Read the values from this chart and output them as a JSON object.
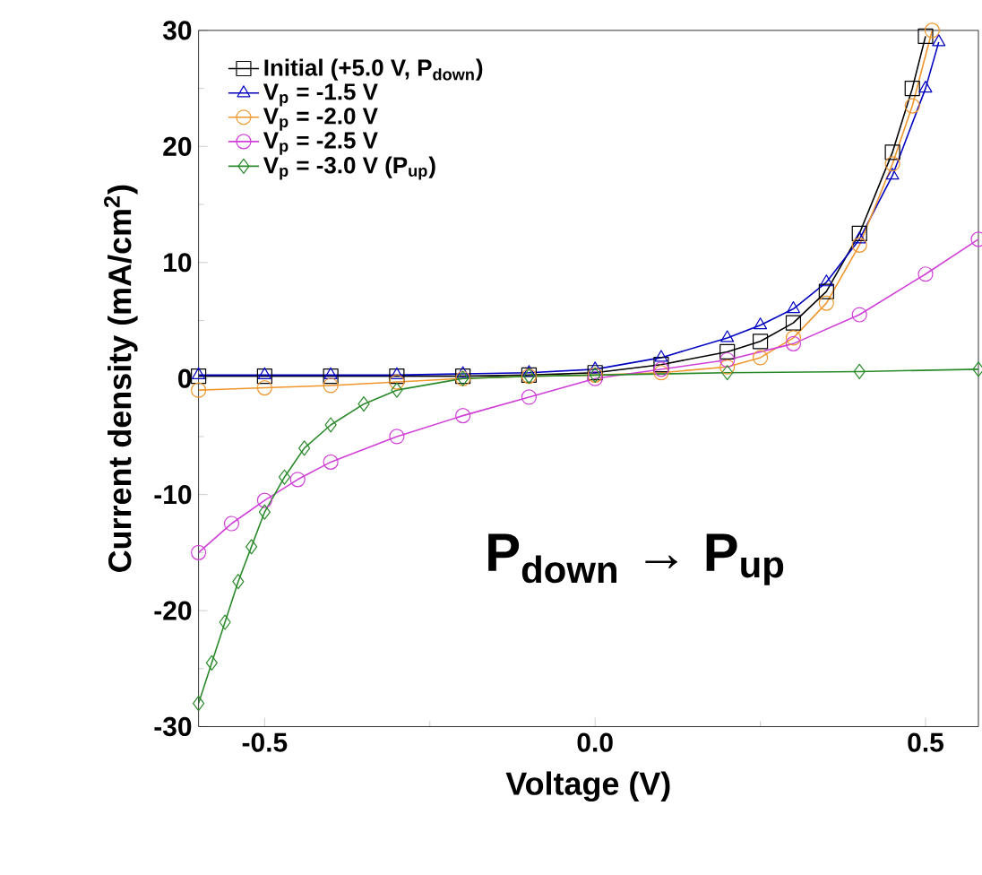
{
  "chart_data": {
    "type": "line",
    "xlabel": "Voltage (V)",
    "ylabel": "Current density (mA/cm$^{2}$)",
    "xlim": [
      -0.6,
      0.58
    ],
    "ylim": [
      -30,
      30
    ],
    "xticks": [
      -0.5,
      {
        "value": 0.0,
        "label": "0.0"
      },
      0.5
    ],
    "yticks": [
      -30,
      -20,
      -10,
      0,
      10,
      20,
      30
    ],
    "legend": "top left",
    "grid": false,
    "line_style": "solid",
    "annotations": [
      "P$_{down}$ → P$_{up}$"
    ],
    "series": [
      {
        "name": "Initial (+5.0 V, P$_{down}$)",
        "color": "#000000",
        "marker": "square",
        "x": [
          -0.6,
          -0.5,
          -0.4,
          -0.3,
          -0.2,
          -0.1,
          0.0,
          0.1,
          0.2,
          0.25,
          0.3,
          0.35,
          0.4,
          0.45,
          0.48,
          0.5
        ],
        "values": [
          0.2,
          0.2,
          0.2,
          0.2,
          0.2,
          0.3,
          0.5,
          1.2,
          2.3,
          3.2,
          4.8,
          7.5,
          12.5,
          19.5,
          25,
          29.5
        ]
      },
      {
        "name": "V$_{p}$ = -1.5 V",
        "color": "#0000c0",
        "marker": "triangle",
        "x": [
          -0.6,
          -0.5,
          -0.4,
          -0.3,
          -0.2,
          -0.1,
          0.0,
          0.1,
          0.2,
          0.25,
          0.3,
          0.35,
          0.4,
          0.45,
          0.5,
          0.52
        ],
        "values": [
          0.3,
          0.3,
          0.3,
          0.3,
          0.4,
          0.5,
          0.8,
          1.8,
          3.5,
          4.6,
          6.0,
          8.3,
          12,
          17.5,
          25,
          29
        ]
      },
      {
        "name": "V$_{p}$ = -2.0 V",
        "color": "#f0962d",
        "marker": "circle",
        "x": [
          -0.6,
          -0.5,
          -0.4,
          -0.3,
          -0.2,
          -0.1,
          0.0,
          0.1,
          0.2,
          0.25,
          0.3,
          0.35,
          0.4,
          0.45,
          0.48,
          0.51
        ],
        "values": [
          -1.0,
          -0.8,
          -0.6,
          -0.3,
          0.0,
          0.2,
          0.3,
          0.5,
          1.0,
          1.8,
          3.5,
          6.5,
          11.5,
          18.5,
          23.5,
          30
        ]
      },
      {
        "name": "V$_{p}$ = -2.5 V",
        "color": "#d040d8",
        "marker": "circle",
        "x": [
          -0.6,
          -0.55,
          -0.5,
          -0.45,
          -0.4,
          -0.3,
          -0.2,
          -0.1,
          0.0,
          0.1,
          0.2,
          0.3,
          0.4,
          0.5,
          0.58
        ],
        "values": [
          -15,
          -12.5,
          -10.5,
          -8.7,
          -7.2,
          -5,
          -3.2,
          -1.6,
          0,
          0.8,
          1.6,
          3.0,
          5.5,
          9,
          12
        ]
      },
      {
        "name": "V$_{p}$ = -3.0 V (P$_{up}$)",
        "color": "#2a8a2a",
        "marker": "diamond",
        "x": [
          -0.6,
          -0.58,
          -0.56,
          -0.54,
          -0.52,
          -0.5,
          -0.47,
          -0.44,
          -0.4,
          -0.35,
          -0.3,
          -0.2,
          -0.1,
          0.0,
          0.2,
          0.4,
          0.58
        ],
        "values": [
          -28,
          -24.5,
          -21,
          -17.5,
          -14.5,
          -11.5,
          -8.5,
          -6,
          -4,
          -2.2,
          -1,
          0,
          0.2,
          0.3,
          0.5,
          0.6,
          0.8
        ]
      }
    ]
  }
}
